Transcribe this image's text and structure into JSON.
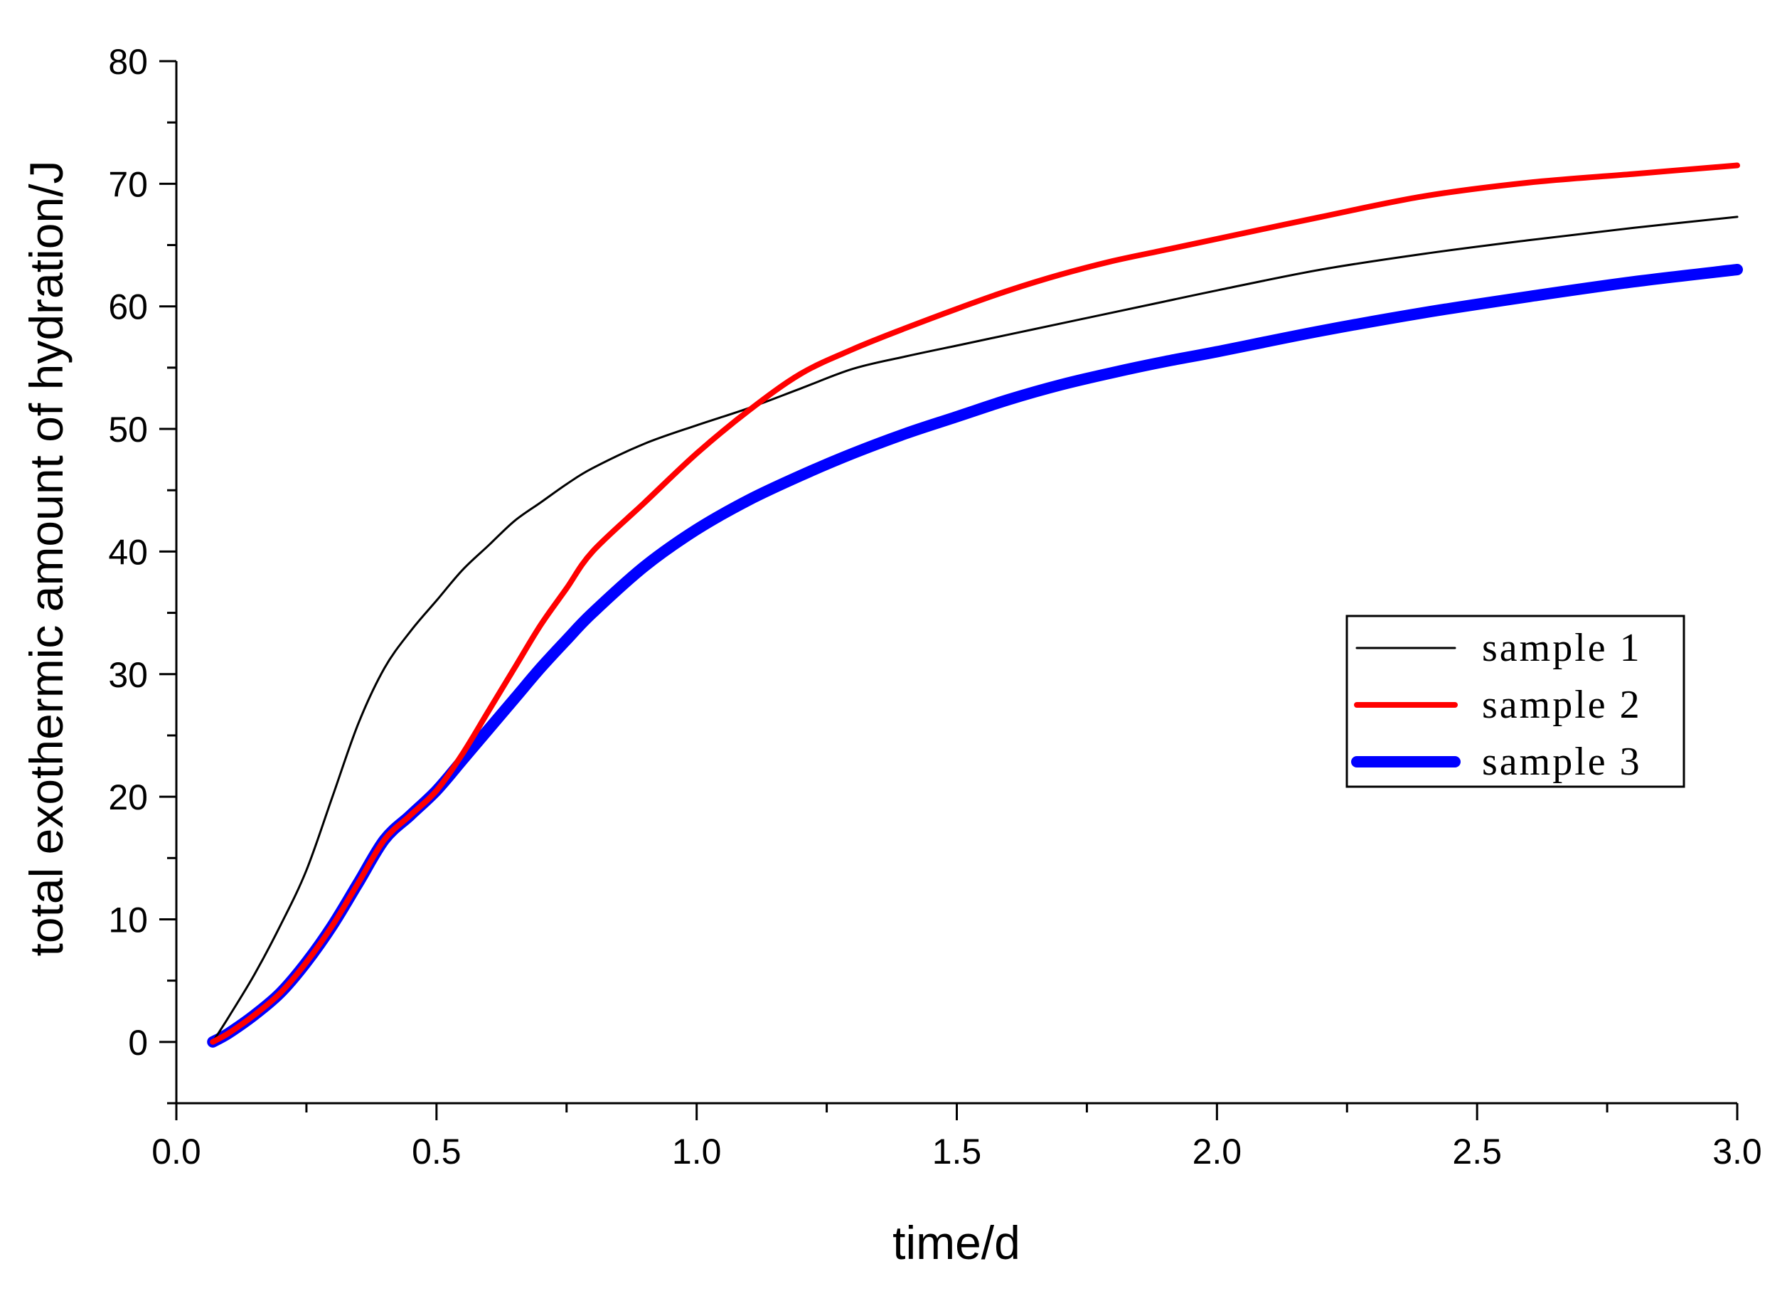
{
  "chart_data": {
    "type": "line",
    "title": "",
    "xlabel": "time/d",
    "ylabel": "total exothermic amount of hydration/J",
    "xlim": [
      0.0,
      3.0
    ],
    "ylim": [
      -5,
      80
    ],
    "xticks": [
      0.0,
      0.5,
      1.0,
      1.5,
      2.0,
      2.5,
      3.0
    ],
    "xtick_labels": [
      "0.0",
      "0.5",
      "1.0",
      "1.5",
      "2.0",
      "2.5",
      "3.0"
    ],
    "yticks": [
      0,
      10,
      20,
      30,
      40,
      50,
      60,
      70,
      80
    ],
    "ytick_labels": [
      "0",
      "10",
      "20",
      "30",
      "40",
      "50",
      "60",
      "70",
      "80"
    ],
    "grid": false,
    "legend_position": "right",
    "series": [
      {
        "name": "sample 1",
        "color": "#000000",
        "x": [
          0.07,
          0.1,
          0.15,
          0.2,
          0.25,
          0.3,
          0.35,
          0.4,
          0.45,
          0.5,
          0.55,
          0.6,
          0.65,
          0.7,
          0.75,
          0.8,
          0.9,
          1.0,
          1.1,
          1.2,
          1.3,
          1.4,
          1.5,
          1.6,
          1.7,
          1.8,
          1.9,
          2.0,
          2.2,
          2.4,
          2.6,
          2.8,
          3.0
        ],
        "y": [
          0,
          2,
          5.5,
          9.5,
          14,
          20,
          26,
          30.5,
          33.5,
          36,
          38.5,
          40.5,
          42.5,
          44,
          45.5,
          46.8,
          48.8,
          50.3,
          51.7,
          53.3,
          54.9,
          55.9,
          56.8,
          57.7,
          58.6,
          59.5,
          60.4,
          61.3,
          63,
          64.3,
          65.4,
          66.4,
          67.3
        ]
      },
      {
        "name": "sample 2",
        "color": "#ff0000",
        "x": [
          0.07,
          0.1,
          0.15,
          0.2,
          0.25,
          0.3,
          0.35,
          0.4,
          0.45,
          0.5,
          0.55,
          0.6,
          0.65,
          0.7,
          0.75,
          0.8,
          0.9,
          1.0,
          1.1,
          1.2,
          1.3,
          1.4,
          1.5,
          1.6,
          1.7,
          1.8,
          1.9,
          2.0,
          2.2,
          2.4,
          2.6,
          2.8,
          3.0
        ],
        "y": [
          0,
          0.7,
          2.2,
          4,
          6.5,
          9.5,
          13,
          16.5,
          18.5,
          20.5,
          23.5,
          27,
          30.5,
          34,
          37,
          40,
          44,
          48,
          51.5,
          54.5,
          56.5,
          58.2,
          59.8,
          61.3,
          62.6,
          63.7,
          64.6,
          65.5,
          67.3,
          69,
          70.1,
          70.8,
          71.5
        ]
      },
      {
        "name": "sample 3",
        "color": "#0000ff",
        "x": [
          0.07,
          0.1,
          0.15,
          0.2,
          0.25,
          0.3,
          0.35,
          0.4,
          0.45,
          0.5,
          0.55,
          0.6,
          0.65,
          0.7,
          0.75,
          0.8,
          0.9,
          1.0,
          1.1,
          1.2,
          1.3,
          1.4,
          1.5,
          1.6,
          1.7,
          1.8,
          1.9,
          2.0,
          2.2,
          2.4,
          2.6,
          2.8,
          3.0
        ],
        "y": [
          0,
          0.7,
          2.2,
          4,
          6.5,
          9.5,
          13,
          16.5,
          18.5,
          20.5,
          23,
          25.5,
          28,
          30.5,
          32.8,
          35,
          38.8,
          41.8,
          44.2,
          46.2,
          48,
          49.6,
          51,
          52.4,
          53.6,
          54.6,
          55.5,
          56.3,
          58,
          59.5,
          60.8,
          62,
          63
        ]
      }
    ]
  }
}
